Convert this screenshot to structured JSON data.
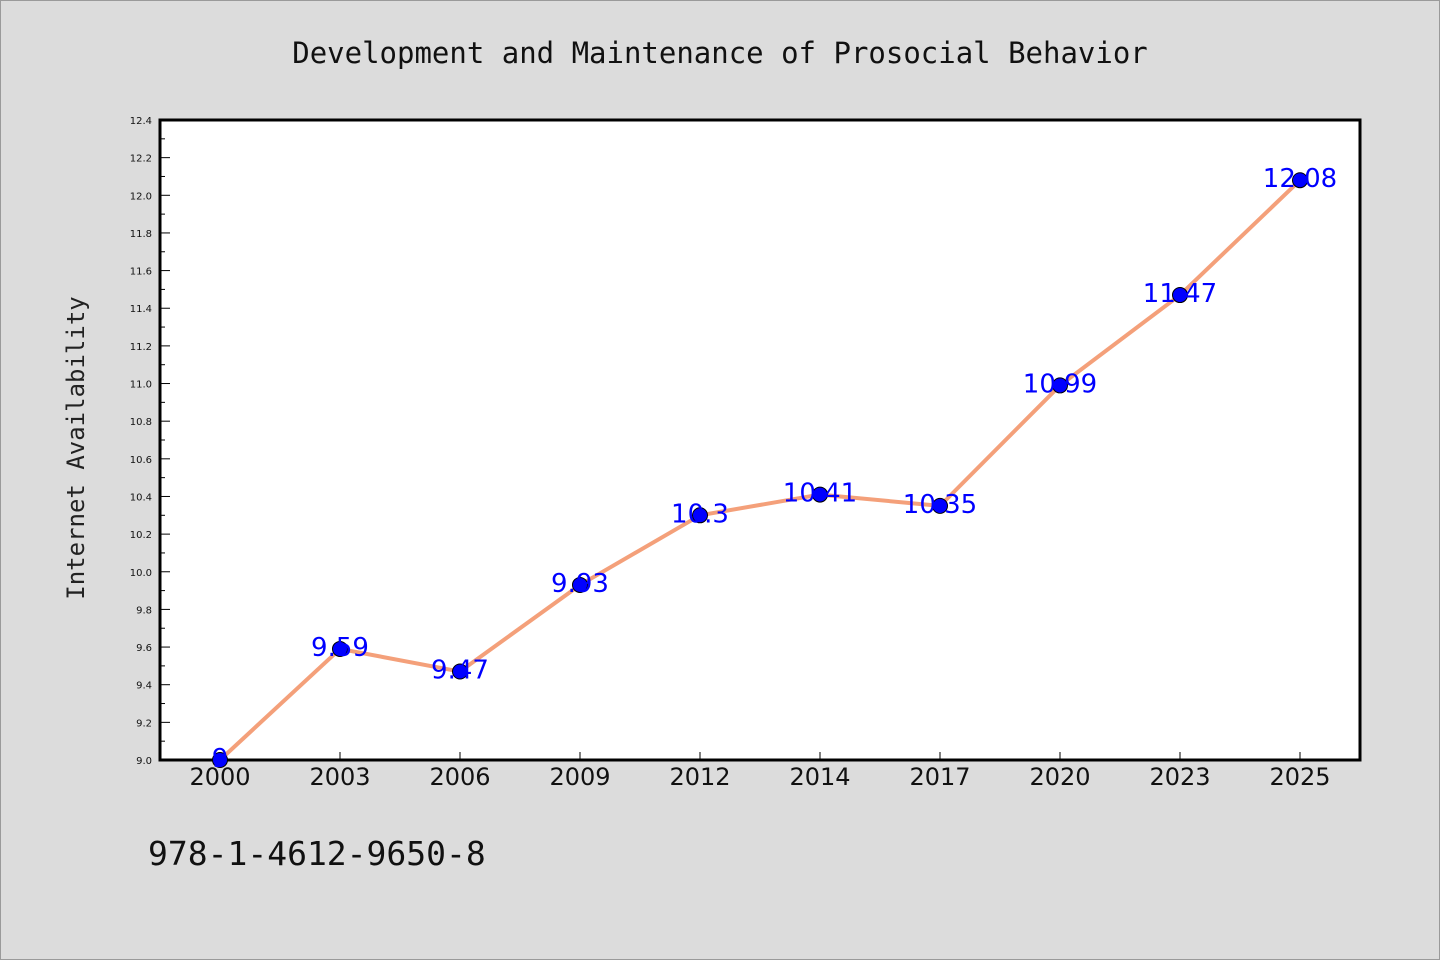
{
  "chart_data": {
    "type": "line",
    "title": "Development and Maintenance of Prosocial Behavior",
    "xlabel": "",
    "ylabel": "Internet Availability",
    "categories": [
      "2000",
      "2003",
      "2006",
      "2009",
      "2012",
      "2014",
      "2017",
      "2020",
      "2023",
      "2025"
    ],
    "series": [
      {
        "values": [
          9,
          9.59,
          9.47,
          9.93,
          10.3,
          10.41,
          10.35,
          10.99,
          11.47,
          12.08
        ],
        "labels": [
          "9",
          "9.59",
          "9.47",
          "9.93",
          "10.3",
          "10.41",
          "10.35",
          "10.99",
          "11.47",
          "12.08"
        ],
        "line_color": "#f4a07a",
        "marker_color": "#0000ff"
      }
    ],
    "ylim": [
      9.0,
      12.4
    ],
    "yticks": [
      "9.0",
      "9.2",
      "9.4",
      "9.6",
      "9.8",
      "10.0",
      "10.2",
      "10.4",
      "10.6",
      "10.8",
      "11.0",
      "11.2",
      "11.4",
      "11.6",
      "11.8",
      "12.0",
      "12.2",
      "12.4"
    ],
    "grid": false,
    "legend": "none"
  },
  "footer": {
    "isbn": "978-1-4612-9650-8"
  },
  "colors": {
    "background": "#dcdcdc",
    "plot_background": "#ffffff",
    "data_label": "#0000ff"
  }
}
